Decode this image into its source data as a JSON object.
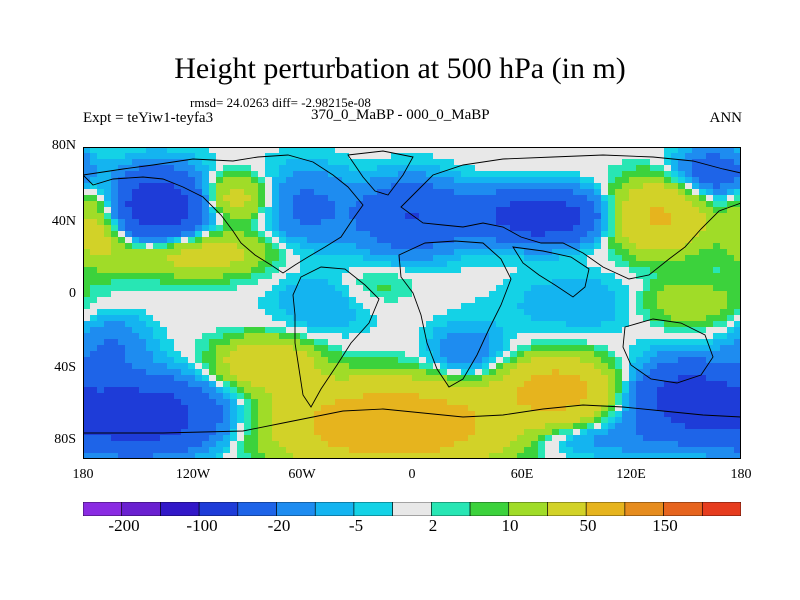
{
  "title": "Height perturbation at 500 hPa (in m)",
  "stats": "rmsd= 24.0263 diff= -2.98215e-08",
  "left_label": "Expt = teYiw1-teyfa3",
  "center_label": "370_0_MaBP - 000_0_MaBP",
  "right_label": "ANN",
  "y_ticks": [
    "80N",
    "40N",
    "0",
    "40S",
    "80S"
  ],
  "x_ticks": [
    "180",
    "120W",
    "60W",
    "0",
    "60E",
    "120E",
    "180"
  ],
  "colorbar": {
    "colors": [
      "#8a2be2",
      "#6a20d0",
      "#3218c8",
      "#1e3cd8",
      "#1e64e8",
      "#1e8cf0",
      "#14b4f0",
      "#14d2e6",
      "#e8e8e8",
      "#28e6b4",
      "#3cd23c",
      "#a0dc28",
      "#d2d228",
      "#e6b41e",
      "#e68c1e",
      "#e6641e",
      "#e63c1e"
    ],
    "labels": [
      "-200",
      "-100",
      "-20",
      "-5",
      "2",
      "10",
      "50",
      "150"
    ]
  },
  "chart_data": {
    "type": "filled-contour-map",
    "title": "Height perturbation at 500 hPa (in m)",
    "units": "m",
    "lon_range": [
      -180,
      180
    ],
    "lat_range": [
      -90,
      90
    ],
    "contour_levels": [
      -200,
      -150,
      -100,
      -50,
      -20,
      -10,
      -5,
      -2,
      2,
      5,
      10,
      20,
      50,
      100,
      150,
      200
    ],
    "anomalies": [
      {
        "lon": -140,
        "lat": 55,
        "value": -90,
        "w": 22,
        "h": 14
      },
      {
        "lon": -170,
        "lat": 50,
        "value": 45,
        "w": 12,
        "h": 16
      },
      {
        "lon": -100,
        "lat": 60,
        "value": 40,
        "w": 16,
        "h": 10
      },
      {
        "lon": -120,
        "lat": 30,
        "value": 35,
        "w": 30,
        "h": 10
      },
      {
        "lon": -60,
        "lat": 55,
        "value": -25,
        "w": 18,
        "h": 16
      },
      {
        "lon": 0,
        "lat": 50,
        "value": -50,
        "w": 20,
        "h": 14
      },
      {
        "lon": 70,
        "lat": 50,
        "value": -85,
        "w": 22,
        "h": 10
      },
      {
        "lon": 135,
        "lat": 50,
        "value": 55,
        "w": 18,
        "h": 14
      },
      {
        "lon": 165,
        "lat": 75,
        "value": -35,
        "w": 15,
        "h": 10
      },
      {
        "lon": 150,
        "lat": 0,
        "value": 20,
        "w": 20,
        "h": 10
      },
      {
        "lon": 95,
        "lat": 0,
        "value": -10,
        "w": 30,
        "h": 12
      },
      {
        "lon": -50,
        "lat": 0,
        "value": -10,
        "w": 20,
        "h": 14
      },
      {
        "lon": -80,
        "lat": -35,
        "value": 45,
        "w": 18,
        "h": 10
      },
      {
        "lon": -150,
        "lat": -65,
        "value": -85,
        "w": 30,
        "h": 14
      },
      {
        "lon": -165,
        "lat": -25,
        "value": -20,
        "w": 15,
        "h": 12
      },
      {
        "lon": -10,
        "lat": -70,
        "value": 90,
        "w": 42,
        "h": 16
      },
      {
        "lon": 80,
        "lat": -50,
        "value": 70,
        "w": 20,
        "h": 12
      },
      {
        "lon": 150,
        "lat": -55,
        "value": -70,
        "w": 20,
        "h": 14
      },
      {
        "lon": 100,
        "lat": -78,
        "value": -15,
        "w": 30,
        "h": 8
      },
      {
        "lon": 30,
        "lat": -30,
        "value": -20,
        "w": 15,
        "h": 12
      },
      {
        "lon": -20,
        "lat": 10,
        "value": 8,
        "w": 15,
        "h": 8
      }
    ]
  }
}
